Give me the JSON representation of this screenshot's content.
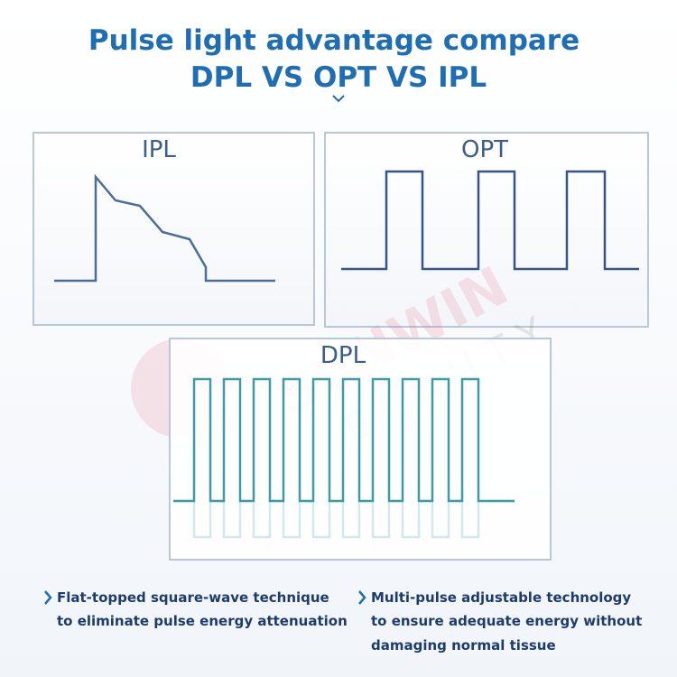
{
  "header": {
    "title": "Pulse light advantage compare",
    "subtitle": "DPL VS OPT VS IPL"
  },
  "panels": [
    {
      "label": "IPL"
    },
    {
      "label": "OPT"
    },
    {
      "label": "DPL"
    }
  ],
  "watermark": {
    "brand": "SUNWIN",
    "tagline": "BEAUTY"
  },
  "features": [
    {
      "lines": [
        "Flat-topped square-wave technique",
        "to eliminate pulse energy attenuation"
      ]
    },
    {
      "lines": [
        "Multi-pulse adjustable technology",
        "to ensure adequate energy without",
        "damaging normal tissue"
      ]
    }
  ]
}
